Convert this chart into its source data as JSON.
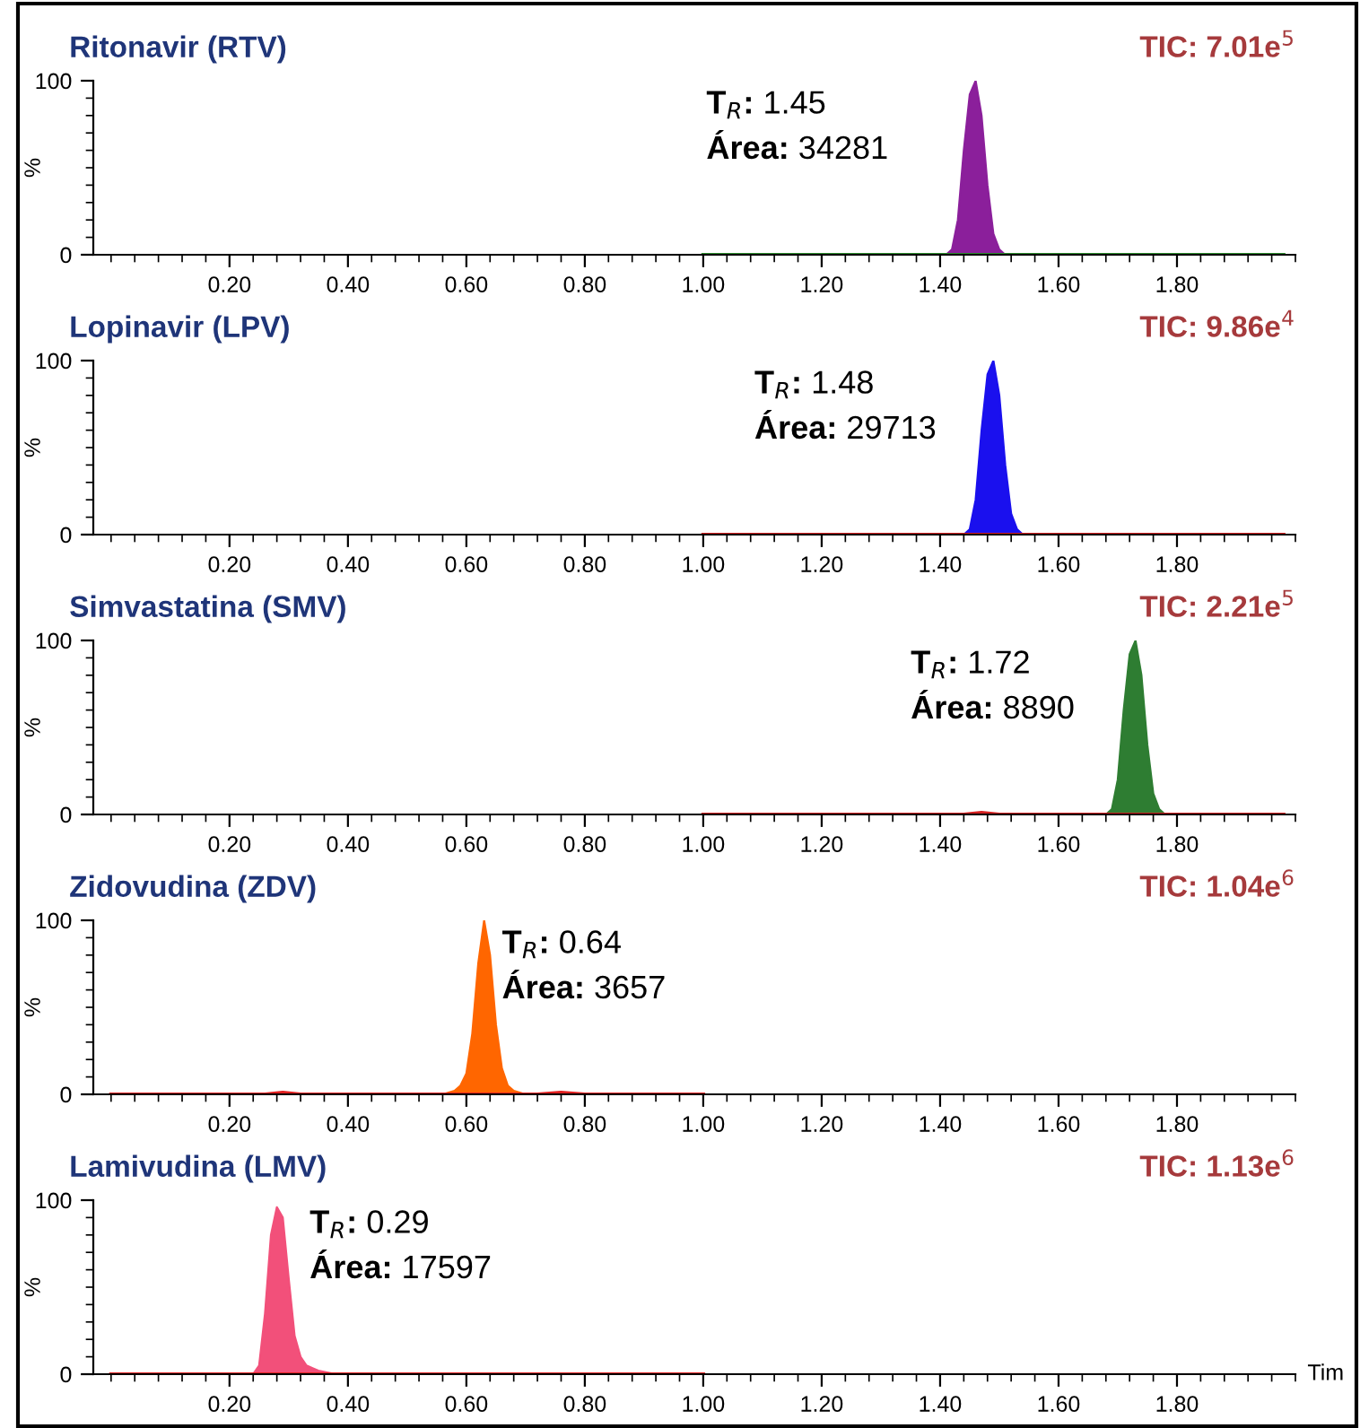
{
  "chart_data": [
    {
      "type": "area",
      "title": "Ritonavir (RTV)",
      "subtitle": "TIC: 7.01e$^{5}$",
      "ylabel": "%",
      "xlim": [
        -0.03,
        2.0
      ],
      "ylim": [
        0,
        100
      ],
      "yticks": [
        0,
        100
      ],
      "xticks": [
        {
          "value": 0.2,
          "label": "0.20"
        },
        {
          "value": 0.4,
          "label": "0.40"
        },
        {
          "value": 0.6,
          "label": "0.60"
        },
        {
          "value": 0.8,
          "label": "0.80"
        },
        {
          "value": 1.0,
          "label": "1.00"
        },
        {
          "value": 1.2,
          "label": "1.20"
        },
        {
          "value": 1.4,
          "label": "1.40"
        },
        {
          "value": 1.6,
          "label": "1.60"
        },
        {
          "value": 1.8,
          "label": "1.80"
        }
      ],
      "annotations": [
        "T$_{R}$: 1.45",
        "Área: 34281"
      ],
      "series": [
        {
          "type": "line",
          "color": "#2e8b2e",
          "x": [
            1.0,
            1.98
          ],
          "values": [
            0,
            0
          ]
        },
        {
          "color": "#8b1f9b",
          "x": [
            1.41,
            1.42,
            1.43,
            1.44,
            1.45,
            1.46,
            1.47,
            1.48,
            1.49,
            1.5,
            1.51
          ],
          "values": [
            0,
            3,
            20,
            60,
            92,
            100,
            80,
            40,
            12,
            3,
            0
          ]
        }
      ]
    },
    {
      "type": "area",
      "title": "Lopinavir (LPV)",
      "subtitle": "TIC: 9.86e$^{4}$",
      "ylabel": "%",
      "xlim": [
        -0.03,
        2.0
      ],
      "ylim": [
        0,
        100
      ],
      "yticks": [
        0,
        100
      ],
      "xticks": [
        {
          "value": 0.2,
          "label": "0.20"
        },
        {
          "value": 0.4,
          "label": "0.40"
        },
        {
          "value": 0.6,
          "label": "0.60"
        },
        {
          "value": 0.8,
          "label": "0.80"
        },
        {
          "value": 1.0,
          "label": "1.00"
        },
        {
          "value": 1.2,
          "label": "1.20"
        },
        {
          "value": 1.4,
          "label": "1.40"
        },
        {
          "value": 1.6,
          "label": "1.60"
        },
        {
          "value": 1.8,
          "label": "1.80"
        }
      ],
      "annotations": [
        "T$_{R}$: 1.48",
        "Área: 29713"
      ],
      "series": [
        {
          "type": "line",
          "color": "#d42020",
          "x": [
            1.0,
            1.98
          ],
          "values": [
            0,
            0
          ]
        },
        {
          "color": "#1a10ee",
          "x": [
            1.44,
            1.45,
            1.46,
            1.47,
            1.48,
            1.49,
            1.5,
            1.51,
            1.52,
            1.53,
            1.54
          ],
          "values": [
            0,
            3,
            20,
            60,
            92,
            100,
            80,
            40,
            12,
            3,
            0
          ]
        }
      ]
    },
    {
      "type": "area",
      "title": "Simvastatina (SMV)",
      "subtitle": "TIC: 2.21e$^{5}$",
      "ylabel": "%",
      "xlim": [
        -0.03,
        2.0
      ],
      "ylim": [
        0,
        100
      ],
      "yticks": [
        0,
        100
      ],
      "xticks": [
        {
          "value": 0.2,
          "label": "0.20"
        },
        {
          "value": 0.4,
          "label": "0.40"
        },
        {
          "value": 0.6,
          "label": "0.60"
        },
        {
          "value": 0.8,
          "label": "0.80"
        },
        {
          "value": 1.0,
          "label": "1.00"
        },
        {
          "value": 1.2,
          "label": "1.20"
        },
        {
          "value": 1.4,
          "label": "1.40"
        },
        {
          "value": 1.6,
          "label": "1.60"
        },
        {
          "value": 1.8,
          "label": "1.80"
        }
      ],
      "annotations": [
        "T$_{R}$: 1.72",
        "Área: 8890"
      ],
      "series": [
        {
          "type": "line",
          "color": "#d42020",
          "x": [
            1.0,
            1.44,
            1.47,
            1.5,
            1.98
          ],
          "values": [
            0,
            0,
            1,
            0,
            0
          ]
        },
        {
          "color": "#2e7d32",
          "x": [
            1.68,
            1.69,
            1.7,
            1.71,
            1.72,
            1.73,
            1.74,
            1.75,
            1.76,
            1.77,
            1.78
          ],
          "values": [
            0,
            3,
            20,
            60,
            92,
            100,
            80,
            40,
            12,
            3,
            0
          ]
        }
      ]
    },
    {
      "type": "area",
      "title": "Zidovudina (ZDV)",
      "subtitle": "TIC: 1.04e$^{6}$",
      "ylabel": "%",
      "xlim": [
        -0.03,
        2.0
      ],
      "ylim": [
        0,
        100
      ],
      "yticks": [
        0,
        100
      ],
      "xticks": [
        {
          "value": 0.2,
          "label": "0.20"
        },
        {
          "value": 0.4,
          "label": "0.40"
        },
        {
          "value": 0.6,
          "label": "0.60"
        },
        {
          "value": 0.8,
          "label": "0.80"
        },
        {
          "value": 1.0,
          "label": "1.00"
        },
        {
          "value": 1.2,
          "label": "1.20"
        },
        {
          "value": 1.4,
          "label": "1.40"
        },
        {
          "value": 1.6,
          "label": "1.60"
        },
        {
          "value": 1.8,
          "label": "1.80"
        }
      ],
      "annotations": [
        "T$_{R}$: 0.64",
        "Área: 3657"
      ],
      "series": [
        {
          "type": "line",
          "color": "#e02020",
          "x": [
            0.0,
            0.26,
            0.29,
            0.32,
            0.72,
            0.76,
            0.8,
            1.0
          ],
          "values": [
            0,
            0,
            1,
            0,
            0,
            1,
            0,
            0
          ]
        },
        {
          "color": "#ff6600",
          "x": [
            0.56,
            0.58,
            0.59,
            0.6,
            0.61,
            0.62,
            0.63,
            0.64,
            0.65,
            0.66,
            0.67,
            0.68,
            0.7
          ],
          "values": [
            0,
            2,
            5,
            12,
            35,
            75,
            100,
            80,
            40,
            15,
            5,
            2,
            0
          ]
        }
      ]
    },
    {
      "type": "area",
      "title": "Lamivudina (LMV)",
      "subtitle": "TIC: 1.13e$^{6}$",
      "ylabel": "%",
      "xlabel": "Tim",
      "xlim": [
        -0.03,
        2.0
      ],
      "ylim": [
        0,
        100
      ],
      "yticks": [
        0,
        100
      ],
      "xticks": [
        {
          "value": 0.2,
          "label": "0.20"
        },
        {
          "value": 0.4,
          "label": "0.40"
        },
        {
          "value": 0.6,
          "label": "0.60"
        },
        {
          "value": 0.8,
          "label": "0.80"
        },
        {
          "value": 1.0,
          "label": "1.00"
        },
        {
          "value": 1.2,
          "label": "1.20"
        },
        {
          "value": 1.4,
          "label": "1.40"
        },
        {
          "value": 1.6,
          "label": "1.60"
        },
        {
          "value": 1.8,
          "label": "1.80"
        }
      ],
      "annotations": [
        "T$_{R}$: 0.29",
        "Área: 17597"
      ],
      "series": [
        {
          "type": "line",
          "color": "#e02020",
          "x": [
            0.0,
            1.0
          ],
          "values": [
            0,
            0
          ]
        },
        {
          "color": "#f2507a",
          "x": [
            0.24,
            0.25,
            0.26,
            0.27,
            0.28,
            0.29,
            0.3,
            0.31,
            0.32,
            0.33,
            0.35,
            0.38
          ],
          "values": [
            0,
            5,
            35,
            80,
            96,
            90,
            55,
            22,
            10,
            5,
            2,
            0
          ]
        }
      ]
    }
  ]
}
